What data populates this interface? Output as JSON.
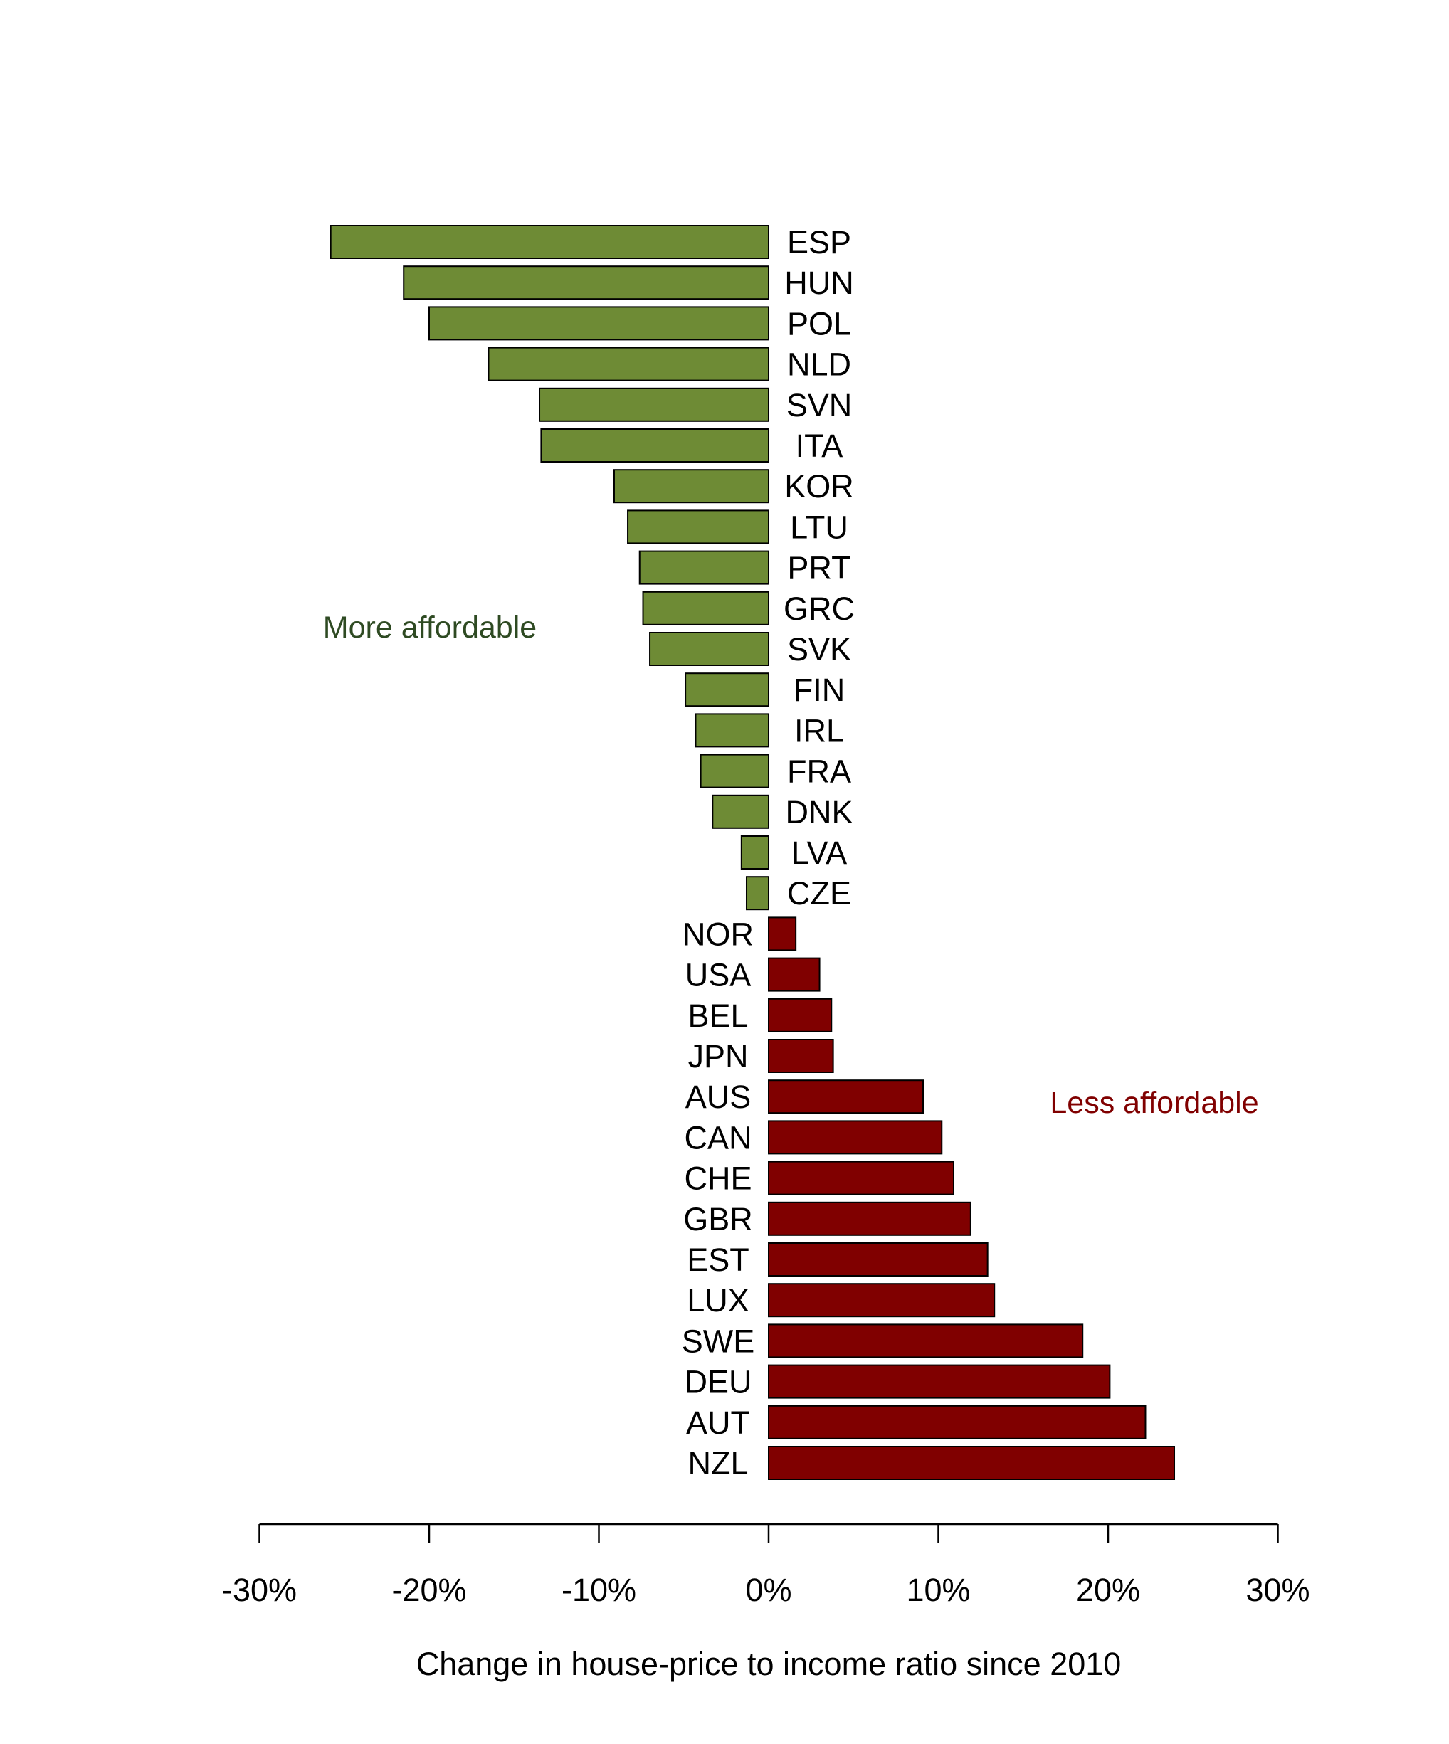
{
  "chart_data": {
    "type": "bar",
    "orientation": "horizontal",
    "xlabel": "Change in house-price to income ratio since 2010",
    "xlim": [
      -30,
      30
    ],
    "x_ticks": [
      -30,
      -20,
      -10,
      0,
      10,
      20,
      30
    ],
    "x_tick_labels": [
      "-30%",
      "-20%",
      "-10%",
      "0%",
      "10%",
      "20%",
      "30%"
    ],
    "grid": false,
    "annotations": [
      {
        "text": "More affordable",
        "color": "#2e4a22"
      },
      {
        "text": "Less affordable",
        "color": "#800000"
      }
    ],
    "colors": {
      "negative": "#6e8b35",
      "positive": "#800000",
      "outline": "#000000"
    },
    "categories": [
      "ESP",
      "HUN",
      "POL",
      "NLD",
      "SVN",
      "ITA",
      "KOR",
      "LTU",
      "PRT",
      "GRC",
      "SVK",
      "FIN",
      "IRL",
      "FRA",
      "DNK",
      "LVA",
      "CZE",
      "NOR",
      "USA",
      "BEL",
      "JPN",
      "AUS",
      "CAN",
      "CHE",
      "GBR",
      "EST",
      "LUX",
      "SWE",
      "DEU",
      "AUT",
      "NZL"
    ],
    "values": [
      -25.8,
      -21.5,
      -20.0,
      -16.5,
      -13.5,
      -13.4,
      -9.1,
      -8.3,
      -7.6,
      -7.4,
      -7.0,
      -4.9,
      -4.3,
      -4.0,
      -3.3,
      -1.6,
      -1.3,
      1.6,
      3.0,
      3.7,
      3.8,
      9.1,
      10.2,
      10.9,
      11.9,
      12.9,
      13.3,
      18.5,
      20.1,
      22.2,
      23.9
    ]
  }
}
